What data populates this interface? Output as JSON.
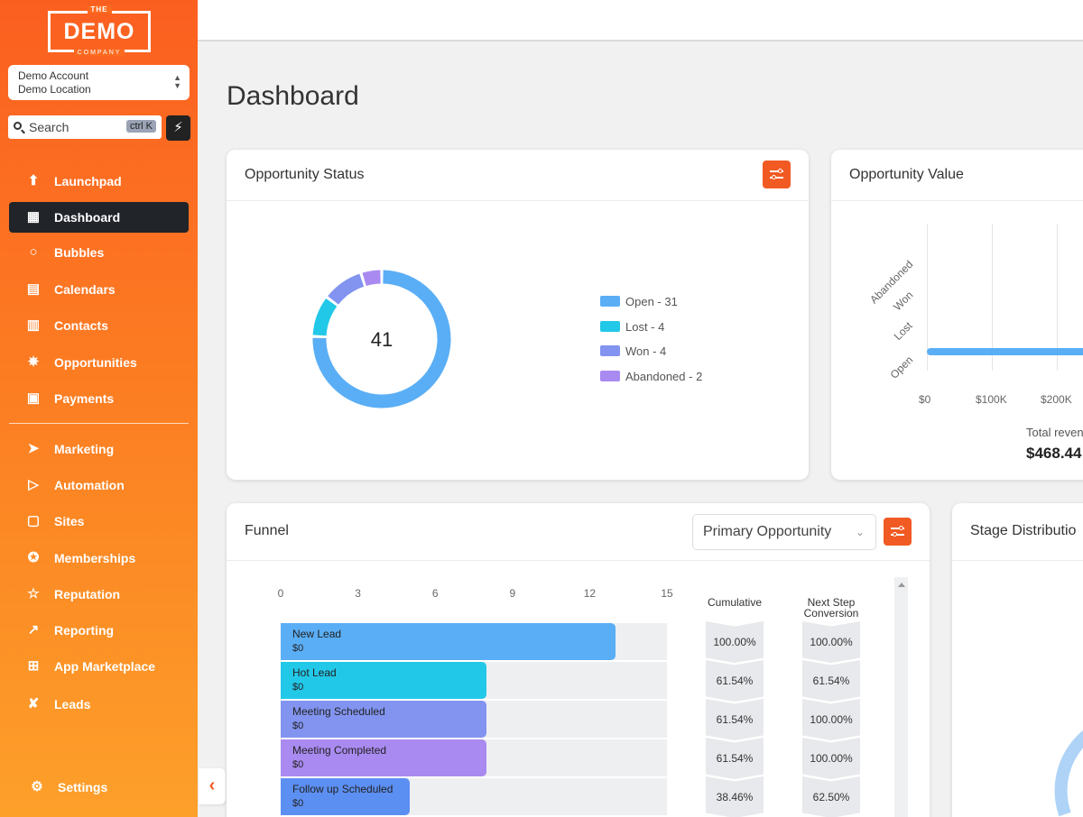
{
  "brand": {
    "logo_top": "THE",
    "logo_main": "DEMO",
    "logo_bottom": "COMPANY"
  },
  "account": {
    "name": "Demo Account",
    "location": "Demo Location"
  },
  "search": {
    "placeholder": "Search",
    "shortcut": "ctrl K"
  },
  "nav": {
    "items": [
      {
        "label": "Launchpad",
        "icon": "launchpad-icon"
      },
      {
        "label": "Dashboard",
        "icon": "dashboard-grid-icon",
        "active": true
      },
      {
        "label": "Bubbles",
        "icon": "chat-bubble-icon"
      },
      {
        "label": "Calendars",
        "icon": "calendar-icon"
      },
      {
        "label": "Contacts",
        "icon": "contacts-icon"
      },
      {
        "label": "Opportunities",
        "icon": "opportunities-icon"
      },
      {
        "label": "Payments",
        "icon": "payments-icon"
      },
      {
        "label": "Marketing",
        "icon": "send-icon"
      },
      {
        "label": "Automation",
        "icon": "automation-icon"
      },
      {
        "label": "Sites",
        "icon": "sites-icon"
      },
      {
        "label": "Memberships",
        "icon": "badge-icon"
      },
      {
        "label": "Reputation",
        "icon": "star-icon"
      },
      {
        "label": "Reporting",
        "icon": "trend-icon"
      },
      {
        "label": "App Marketplace",
        "icon": "apps-grid-icon"
      },
      {
        "label": "Leads",
        "icon": "leads-icon"
      }
    ],
    "settings_label": "Settings"
  },
  "page": {
    "title": "Dashboard"
  },
  "opportunity_status": {
    "title": "Opportunity Status",
    "total": "41",
    "legend": [
      {
        "label": "Open - 31",
        "color": "#5aaef5"
      },
      {
        "label": "Lost - 4",
        "color": "#22c8e8"
      },
      {
        "label": "Won - 4",
        "color": "#8294f0"
      },
      {
        "label": "Abandoned - 2",
        "color": "#a98af0"
      }
    ]
  },
  "opportunity_value": {
    "title": "Opportunity Value",
    "categories": [
      "Abandoned",
      "Won",
      "Lost",
      "Open"
    ],
    "x_ticks": [
      "$0",
      "$100K",
      "$200K"
    ],
    "total_label": "Total reven",
    "total_value": "$468.44"
  },
  "funnel": {
    "title": "Funnel",
    "select_value": "Primary Opportunity",
    "axis_ticks": [
      "0",
      "3",
      "6",
      "9",
      "12",
      "15"
    ],
    "max": 15,
    "col_cumulative": "Cumulative",
    "col_next_step_1": "Next Step",
    "col_next_step_2": "Conversion",
    "stages": [
      {
        "name": "New Lead",
        "amount": "$0",
        "count": 13,
        "color": "#5aaef5",
        "cumulative": "100.00%",
        "next": "100.00%"
      },
      {
        "name": "Hot Lead",
        "amount": "$0",
        "count": 8,
        "color": "#22c8e8",
        "cumulative": "61.54%",
        "next": "61.54%"
      },
      {
        "name": "Meeting Scheduled",
        "amount": "$0",
        "count": 8,
        "color": "#8294f0",
        "cumulative": "61.54%",
        "next": "100.00%"
      },
      {
        "name": "Meeting Completed",
        "amount": "$0",
        "count": 8,
        "color": "#a98af0",
        "cumulative": "61.54%",
        "next": "100.00%"
      },
      {
        "name": "Follow up Scheduled",
        "amount": "$0",
        "count": 5,
        "color": "#5c8ff2",
        "cumulative": "38.46%",
        "next": "62.50%"
      }
    ]
  },
  "stage_distribution": {
    "title": "Stage Distributio"
  },
  "chart_data": [
    {
      "type": "pie",
      "title": "Opportunity Status",
      "categories": [
        "Open",
        "Lost",
        "Won",
        "Abandoned"
      ],
      "values": [
        31,
        4,
        4,
        2
      ]
    },
    {
      "type": "bar",
      "title": "Funnel",
      "categories": [
        "New Lead",
        "Hot Lead",
        "Meeting Scheduled",
        "Meeting Completed",
        "Follow up Scheduled"
      ],
      "values": [
        13,
        8,
        8,
        8,
        5
      ],
      "xlim": [
        0,
        15
      ]
    }
  ]
}
